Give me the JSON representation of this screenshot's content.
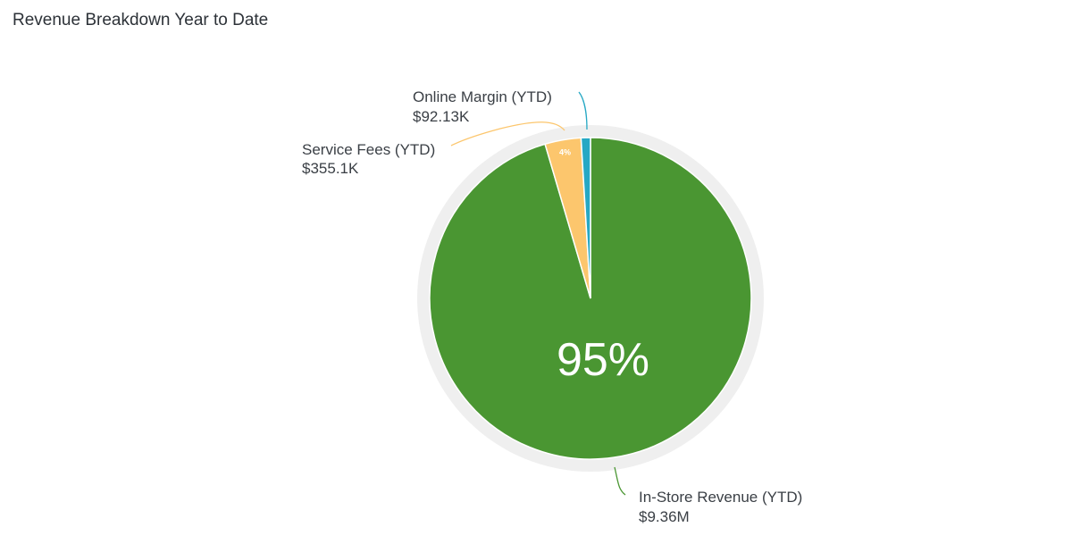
{
  "title": "Revenue Breakdown Year to Date",
  "chart_data": {
    "type": "pie",
    "title": "Revenue Breakdown Year to Date",
    "slices": [
      {
        "name": "In-Store Revenue (YTD)",
        "value": 9360000,
        "value_label": "$9.36M",
        "percent_label": "95%",
        "color": "#4a9632"
      },
      {
        "name": "Service Fees (YTD)",
        "value": 355100,
        "value_label": "$355.1K",
        "percent_label": "4%",
        "color": "#fcc66d"
      },
      {
        "name": "Online Margin (YTD)",
        "value": 92130,
        "value_label": "$92.13K",
        "percent_label": "",
        "color": "#26a8c4"
      }
    ],
    "ring_color": "#efefef",
    "legend": "none"
  }
}
